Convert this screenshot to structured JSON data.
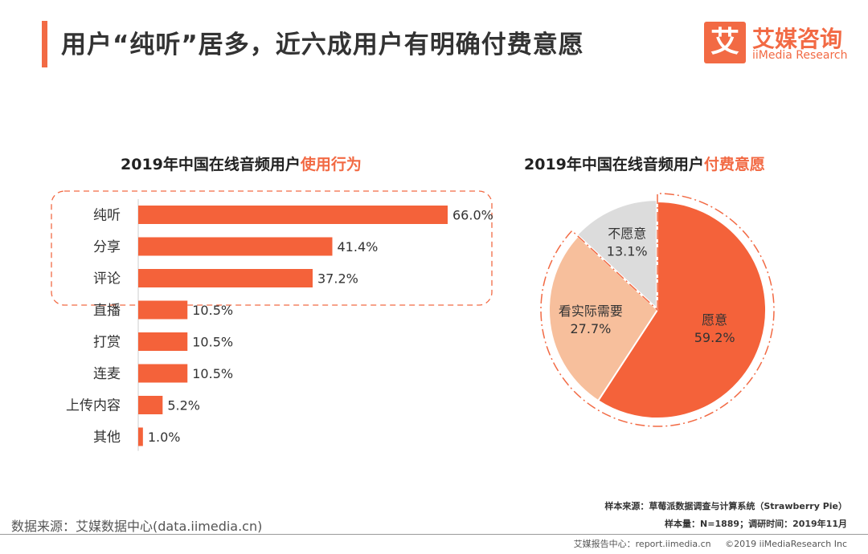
{
  "header": {
    "title": "用户“纯听”居多，近六成用户有明确付费意愿",
    "logo_mark": "艾",
    "logo_cn": "艾媒咨询",
    "logo_en": "iiMedia Research"
  },
  "colors": {
    "accent": "#f26a44",
    "bar": "#f4623a",
    "pie_willing": "#f4623a",
    "pie_depends": "#f7bf9c",
    "pie_unwilling": "#dcdcdc"
  },
  "chart_data": [
    {
      "type": "bar",
      "orientation": "horizontal",
      "title_prefix": "2019年中国在线音频用户",
      "title_highlight": "使用行为",
      "categories": [
        "纯听",
        "分享",
        "评论",
        "直播",
        "打赏",
        "连麦",
        "上传内容",
        "其他"
      ],
      "values": [
        66.0,
        41.4,
        37.2,
        10.5,
        10.5,
        10.5,
        5.2,
        1.0
      ],
      "labels": [
        "66.0%",
        "41.4%",
        "37.2%",
        "10.5%",
        "10.5%",
        "10.5%",
        "5.2%",
        "1.0%"
      ],
      "xlim": [
        0,
        66
      ],
      "highlighted_categories": [
        "纯听",
        "分享",
        "评论"
      ]
    },
    {
      "type": "pie",
      "title_prefix": "2019年中国在线音频用户",
      "title_highlight": "付费意愿",
      "slices": [
        {
          "label": "愿意",
          "value": 59.2,
          "value_label": "59.2%",
          "color": "#f4623a"
        },
        {
          "label": "看实际需要",
          "value": 27.7,
          "value_label": "27.7%",
          "color": "#f7bf9c"
        },
        {
          "label": "不愿意",
          "value": 13.1,
          "value_label": "13.1%",
          "color": "#dcdcdc"
        }
      ]
    }
  ],
  "sources": {
    "sample_source": "样本来源：草莓派数据调查与计算系统（Strawberry Pie）",
    "sample_size": "样本量：N=1889；调研时间：2019年11月",
    "data_source": "数据来源：艾媒数据中心(data.iimedia.cn)",
    "report_center": "艾媒报告中心：report.iimedia.cn",
    "copyright": "©2019  iiMediaResearch Inc"
  }
}
